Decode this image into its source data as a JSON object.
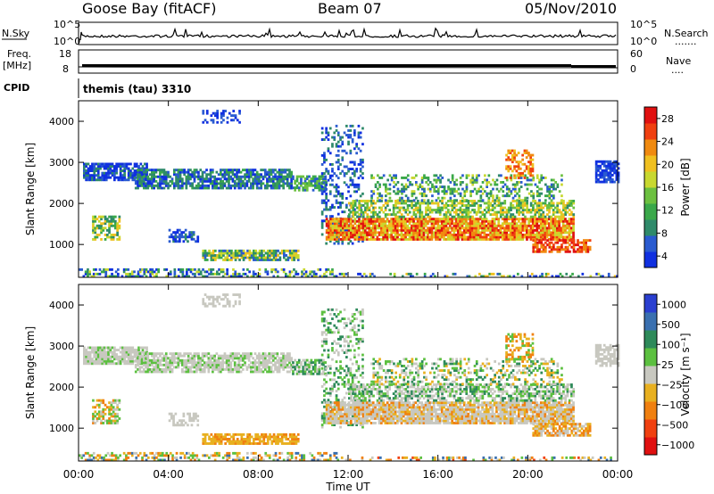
{
  "header": {
    "station": "Goose Bay (fitACF)",
    "beam": "Beam 07",
    "date": "05/Nov/2010"
  },
  "noise_panel": {
    "left_label": "N.Sky",
    "right_label": "N.Search",
    "tick_top": "10^5",
    "tick_bottom": "10^0",
    "right_marker": "......."
  },
  "freq_panel": {
    "left_label_1": "Freq.",
    "left_label_2": "[MHz]",
    "right_label": "Nave",
    "left_ticks": [
      "18",
      "8"
    ],
    "right_ticks": [
      "60",
      "0"
    ],
    "right_marker": "...."
  },
  "cpid_panel": {
    "label": "CPID",
    "value": "themis (tau) 3310"
  },
  "colors": {
    "power": [
      "#1030e0",
      "#2a5bd0",
      "#2f8a6a",
      "#3aa84a",
      "#6cc040",
      "#c8d830",
      "#f0c020",
      "#f08a10",
      "#f04010",
      "#e01010"
    ],
    "velocity": [
      "#2a3fd0",
      "#3a70b0",
      "#2e8a5a",
      "#5cc040",
      "#c8c8c0",
      "#e8b020",
      "#f08010",
      "#f04010",
      "#e01010"
    ]
  },
  "chart_data": [
    {
      "type": "heatmap",
      "name": "power",
      "ylabel": "Slant Range [km]",
      "ylim": [
        200,
        4500
      ],
      "yticks": [
        "4000",
        "3000",
        "2000",
        "1000"
      ],
      "xlim": [
        0,
        24
      ],
      "colorbar_label": "Power [dB]",
      "colorbar_ticks": [
        "28",
        "24",
        "20",
        "16",
        "12",
        "8",
        "4"
      ]
    },
    {
      "type": "heatmap",
      "name": "velocity",
      "ylabel": "Slant Range [km]",
      "ylim": [
        200,
        4500
      ],
      "yticks": [
        "4000",
        "3000",
        "2000",
        "1000"
      ],
      "xlim": [
        0,
        24
      ],
      "xlabel": "Time UT",
      "xticks": [
        "00:00",
        "04:00",
        "08:00",
        "12:00",
        "16:00",
        "20:00",
        "00:00"
      ],
      "colorbar_label": "Velocity [m s⁻¹]",
      "colorbar_ticks": [
        "1000",
        "500",
        "100",
        "25",
        "−25",
        "−100",
        "−500",
        "−1000"
      ]
    }
  ]
}
